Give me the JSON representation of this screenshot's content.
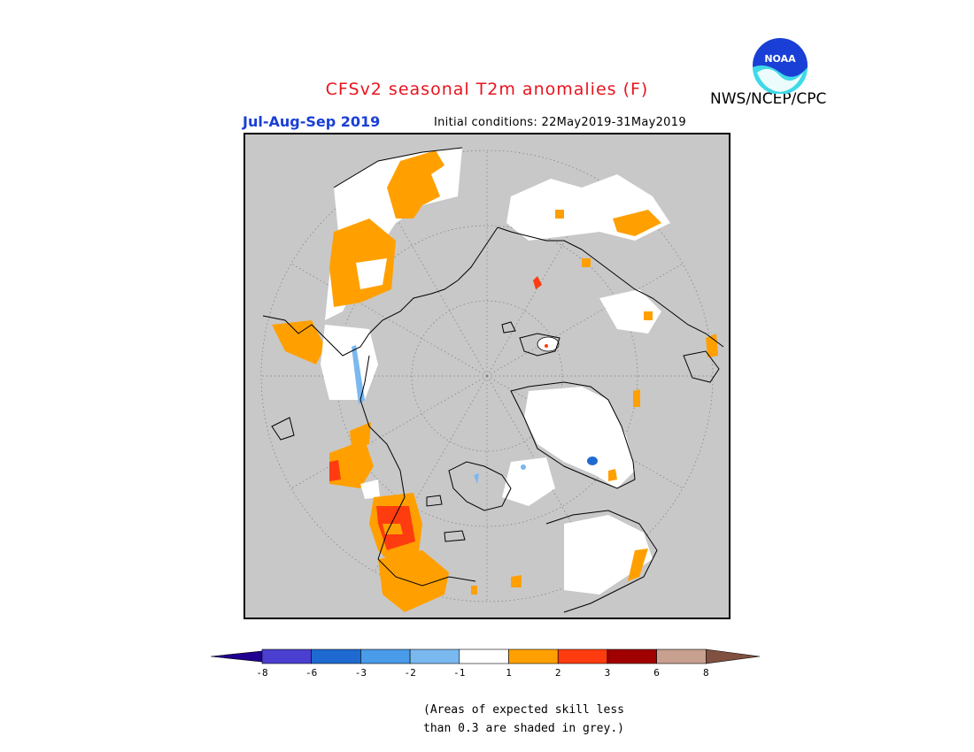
{
  "header": {
    "title": "CFSv2 seasonal T2m anomalies (F)",
    "title_color": "#e8141e",
    "season": "Jul-Aug-Sep 2019",
    "season_color": "#1a3fd6",
    "initial_conditions": "Initial conditions: 22May2019-31May2019",
    "agency": "NWS/NCEP/CPC",
    "logo_icon": "noaa-logo-icon"
  },
  "map": {
    "projection": "north-polar-stereographic",
    "background_color": "#c8c8c8",
    "land_outline_color": "#000000",
    "region_labels": []
  },
  "legend": {
    "ticks": [
      "-8",
      "-6",
      "-3",
      "-2",
      "-1",
      "1",
      "2",
      "3",
      "6",
      "8"
    ],
    "colors": [
      "#200090",
      "#4a3fd0",
      "#1e6ad0",
      "#4a9be8",
      "#7ab8f0",
      "#ffffff",
      "#ffa000",
      "#ff3c10",
      "#a00000",
      "#c8a090",
      "#805040"
    ],
    "note_line1": "(Areas of expected skill less",
    "note_line2": "than 0.3 are shaded in grey.)"
  }
}
